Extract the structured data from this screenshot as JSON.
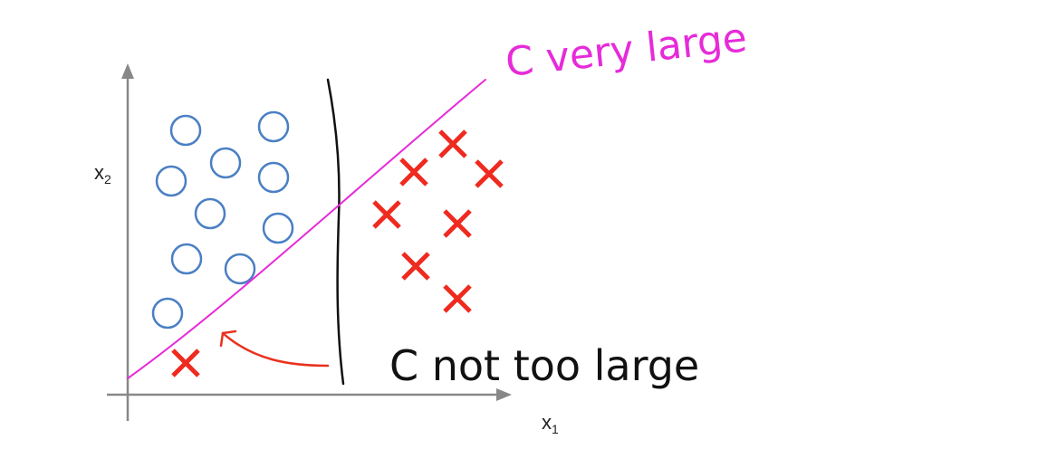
{
  "axes": {
    "x_label": "x",
    "x_subscript": "1",
    "y_label": "x",
    "y_subscript": "2"
  },
  "annotations": {
    "c_very_large": "C very large",
    "c_not_too_large": "C not too large"
  },
  "colors": {
    "circle": "#4a7fc4",
    "cross": "#ef2a1f",
    "magenta_boundary": "#e62bd9",
    "black_boundary": "#111111",
    "red_arrow": "#e8321e",
    "axis": "#888888"
  },
  "icons": {
    "circle_marker": "circle-marker-icon",
    "cross_marker": "cross-marker-icon"
  }
}
